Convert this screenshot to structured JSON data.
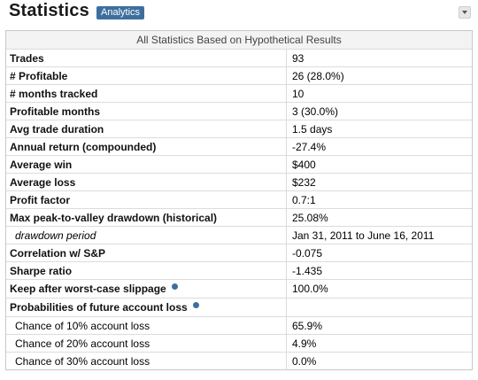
{
  "header": {
    "title": "Statistics",
    "tag": "Analytics"
  },
  "table": {
    "caption": "All Statistics Based on Hypothetical Results",
    "rows": [
      {
        "label": "Trades",
        "value": "93"
      },
      {
        "label": "# Profitable",
        "value": "26 (28.0%)"
      },
      {
        "label": "# months tracked",
        "value": "10"
      },
      {
        "label": "Profitable months",
        "value": "3 (30.0%)"
      },
      {
        "label": "Avg trade duration",
        "value": "1.5 days"
      },
      {
        "label": "Annual return (compounded)",
        "value": "-27.4%"
      },
      {
        "label": "Average win",
        "value": "$400"
      },
      {
        "label": "Average loss",
        "value": "$232"
      },
      {
        "label": "Profit factor",
        "value": "0.7:1"
      },
      {
        "label": "Max peak-to-valley drawdown (historical)",
        "value": "25.08%"
      },
      {
        "label": "drawdown period",
        "value": "Jan 31, 2011 to June 16, 2011"
      },
      {
        "label": "Correlation w/ S&P",
        "value": "-0.075"
      },
      {
        "label": "Sharpe ratio",
        "value": "-1.435"
      },
      {
        "label": "Keep after worst-case slippage",
        "value": "100.0%"
      },
      {
        "label": "Probabilities of future account loss",
        "value": ""
      },
      {
        "label": "Chance of 10% account loss",
        "value": "65.9%"
      },
      {
        "label": "Chance of 20% account loss",
        "value": "4.9%"
      },
      {
        "label": "Chance of 30% account loss",
        "value": "0.0%"
      }
    ]
  },
  "icons": {
    "help": "help-icon",
    "collapse": "chevron-down-icon"
  },
  "colors": {
    "tag_bg": "#3d6f9e",
    "border": "#c8c8c8"
  }
}
